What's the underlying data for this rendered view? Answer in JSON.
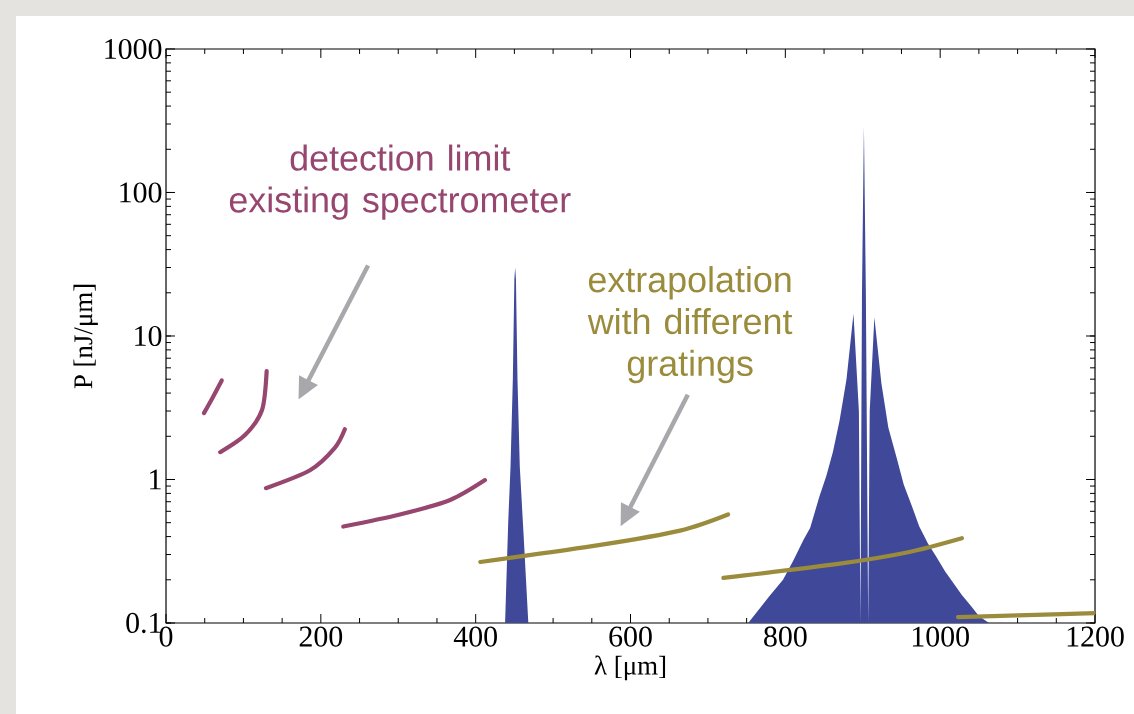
{
  "chart_data": {
    "type": "line",
    "xlabel": "λ [μm]",
    "ylabel": "P [nJ/μm]",
    "xlim": [
      0,
      1200
    ],
    "ylim": [
      0.1,
      1000
    ],
    "log": "y",
    "xticks": [
      0,
      200,
      400,
      600,
      800,
      1000,
      1200
    ],
    "yticks": [
      0.1,
      1,
      10,
      100,
      1000
    ],
    "series": [
      {
        "type": "area",
        "color": "#3f4899",
        "x": [
          438,
          442,
          445,
          448,
          450,
          451,
          452,
          454,
          457,
          462,
          468
        ],
        "values": [
          0.1,
          0.5,
          1.22,
          5,
          25,
          30,
          25,
          5,
          1.22,
          0.4,
          0.1
        ]
      },
      {
        "type": "area",
        "color": "#3f4899",
        "x": [
          752,
          779,
          797,
          810,
          823.5,
          832,
          844,
          853,
          861.5,
          870,
          879,
          888,
          895,
          897,
          899,
          901.5,
          904,
          907,
          909,
          915,
          924,
          933,
          944,
          953,
          964,
          973,
          984,
          995,
          1006,
          1017,
          1028,
          1039,
          1050,
          1063
        ],
        "values": [
          0.1,
          0.153,
          0.2,
          0.27,
          0.38,
          0.46,
          0.76,
          1.06,
          1.56,
          2.57,
          4.99,
          14.3,
          3,
          0.1,
          20,
          290,
          20,
          0.1,
          3,
          13.5,
          4.7,
          2.3,
          1.4,
          0.92,
          0.64,
          0.47,
          0.36,
          0.29,
          0.23,
          0.19,
          0.157,
          0.133,
          0.112,
          0.1
        ]
      },
      {
        "color": "#974670",
        "x": [
          49,
          60,
          72
        ],
        "values": [
          2.9,
          3.7,
          4.9
        ]
      },
      {
        "color": "#974670",
        "x": [
          70,
          102,
          124,
          130
        ],
        "values": [
          1.55,
          2.04,
          3.05,
          5.7
        ]
      },
      {
        "color": "#974670",
        "x": [
          129,
          186,
          218,
          231
        ],
        "values": [
          0.87,
          1.16,
          1.66,
          2.24
        ]
      },
      {
        "color": "#974670",
        "x": [
          229,
          302,
          367,
          412
        ],
        "values": [
          0.47,
          0.57,
          0.72,
          0.99
        ]
      },
      {
        "color": "#9a8c3c",
        "x": [
          406,
          561,
          664,
          726
        ],
        "values": [
          0.266,
          0.35,
          0.44,
          0.57
        ]
      },
      {
        "color": "#9a8c3c",
        "x": [
          720,
          868,
          957,
          1028
        ],
        "values": [
          0.206,
          0.258,
          0.31,
          0.39
        ]
      },
      {
        "color": "#9a8c3c",
        "x": [
          1023,
          1100,
          1200
        ],
        "values": [
          0.11,
          0.113,
          0.117
        ]
      }
    ],
    "annotations": [
      "detection limit existing spectrometer",
      "extrapolation with different gratings"
    ]
  }
}
